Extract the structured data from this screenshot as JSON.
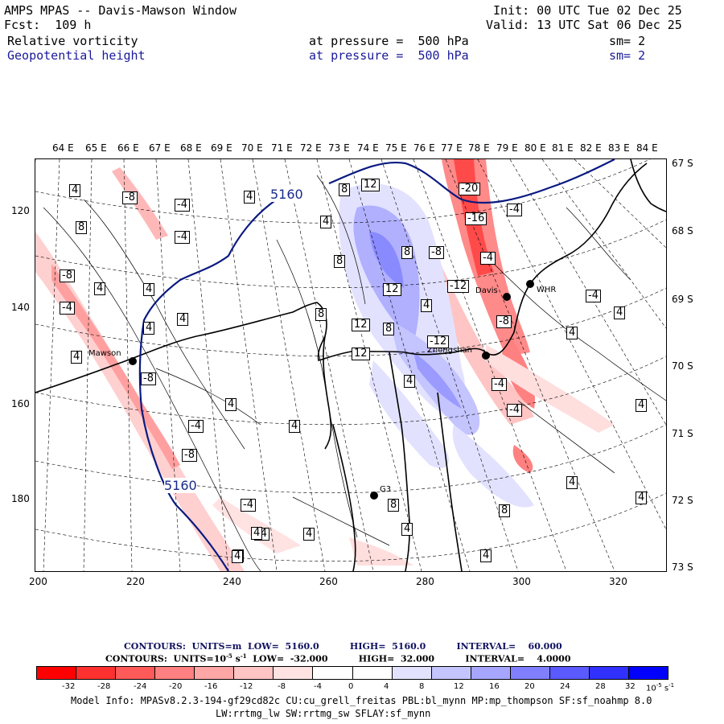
{
  "header": {
    "title": "AMPS MPAS -- Davis-Mawson Window",
    "init": "Init: 00 UTC Tue 02 Dec 25",
    "fcst": "Fcst:  109 h",
    "valid": "Valid: 13 UTC Sat 06 Dec 25",
    "field1": "Relative vorticity",
    "field1_level": "at pressure =  500 hPa",
    "field1_sm": "sm= 2",
    "field2": "Geopotential height",
    "field2_level": "at pressure =  500 hPa",
    "field2_sm": "sm= 2"
  },
  "lon_labels": [
    "64 E",
    "65 E",
    "66 E",
    "67 E",
    "68 E",
    "69 E",
    "70 E",
    "71 E",
    "72 E",
    "73 E",
    "74 E",
    "75 E",
    "76 E",
    "77 E",
    "78 E",
    "79 E",
    "80 E",
    "81 E",
    "82 E",
    "83 E",
    "84 E"
  ],
  "lat_labels": [
    "67 S",
    "68 S",
    "69 S",
    "70 S",
    "71 S",
    "72 S",
    "73 S"
  ],
  "x_ticks": [
    "200",
    "220",
    "240",
    "260",
    "280",
    "300",
    "320"
  ],
  "y_ticks": [
    "120",
    "140",
    "160",
    "180"
  ],
  "height_labels": [
    "5160",
    "5160"
  ],
  "contour_labels": [
    "4",
    "-8",
    "-4",
    "8",
    "-4",
    "-8",
    "4",
    "-4",
    "4",
    "4",
    "4",
    "4",
    "-8",
    "-4",
    "4",
    "-8",
    "-4",
    "-4",
    "4",
    "4",
    "4",
    "8",
    "12",
    "8",
    "8",
    "12",
    "8",
    "4",
    "12",
    "8",
    "-12",
    "12",
    "4",
    "-20",
    "-16",
    "-8",
    "-4",
    "-12",
    "-8",
    "-4",
    "-4",
    "4",
    "4",
    "4",
    "4",
    "4",
    "4",
    "8",
    "8",
    "-4",
    "-4",
    "4",
    "4",
    "4",
    "4",
    "4"
  ],
  "stations": [
    "Mawson",
    "Davis",
    "WHR",
    "Zhongshan",
    "G3"
  ],
  "colorbar": {
    "line1": "CONTOURS:  UNITS=m  LOW=  5160.0          HIGH=  5160.0          INTERVAL=    60.000",
    "line2": "CONTOURS:  UNITS=10",
    "line2_exp": "-5",
    "line2_unit": " s",
    "line2_unit_exp": "-1",
    "line2_rest": "  LOW=  -32.000          HIGH=  32.000          INTERVAL=    4.0000",
    "colors": [
      "#ff0000",
      "#ff3030",
      "#ff5a5a",
      "#ff8080",
      "#ffa6a6",
      "#ffc4c4",
      "#ffe2e2",
      "#ffffff",
      "#ffffff",
      "#e2e2ff",
      "#c4c4ff",
      "#a6a6ff",
      "#8080ff",
      "#5a5aff",
      "#3030ff",
      "#0000ff"
    ],
    "labels": [
      "-32",
      "-28",
      "-24",
      "-20",
      "-16",
      "-12",
      "-8",
      "-4",
      "0",
      "4",
      "8",
      "12",
      "16",
      "20",
      "24",
      "28",
      "32"
    ],
    "unit": "10",
    "unit_exp": "-5",
    "unit_s": " s",
    "unit_s_exp": "-1"
  },
  "model_info": "Model Info: MPASv8.2.3-194-gf29cd82c CU:cu_grell_freitas PBL:bl_mynn MP:mp_thompson SF:sf_noahmp 8.0",
  "model_info2": "LW:rrtmg_lw SW:rrtmg_sw SFLAY:sf_mynn"
}
